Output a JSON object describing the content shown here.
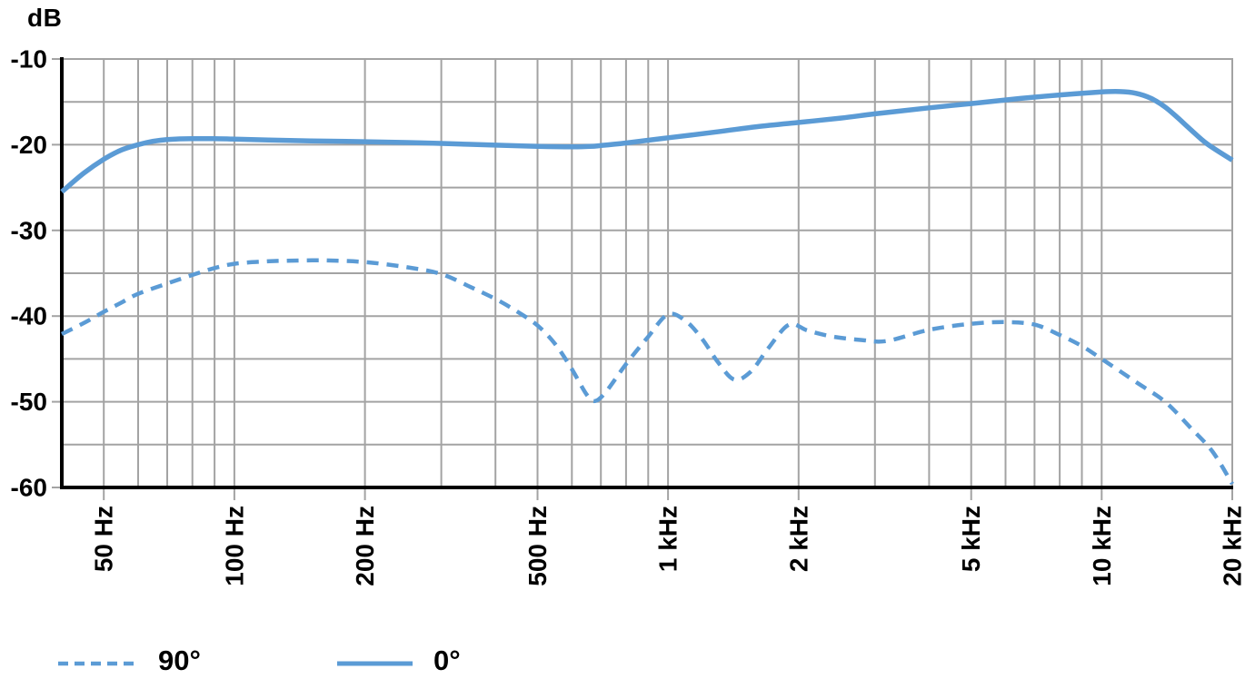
{
  "chart_data": {
    "type": "line",
    "title": "",
    "ylabel": "dB",
    "xlabel": "",
    "x_scale": "log",
    "grid": true,
    "xlim": [
      40,
      20000
    ],
    "ylim": [
      -60,
      -10
    ],
    "y_grid_step": 5,
    "x_ticks": [
      {
        "f": 50,
        "label": "50 Hz"
      },
      {
        "f": 100,
        "label": "100 Hz"
      },
      {
        "f": 200,
        "label": "200 Hz"
      },
      {
        "f": 500,
        "label": "500 Hz"
      },
      {
        "f": 1000,
        "label": "1 kHz"
      },
      {
        "f": 2000,
        "label": "2 kHz"
      },
      {
        "f": 5000,
        "label": "5 kHz"
      },
      {
        "f": 10000,
        "label": "10 kHz"
      },
      {
        "f": 20000,
        "label": "20 kHz"
      }
    ],
    "y_ticks": [
      {
        "v": -10,
        "label": "-10"
      },
      {
        "v": -20,
        "label": "-20"
      },
      {
        "v": -30,
        "label": "-30"
      },
      {
        "v": -40,
        "label": "-40"
      },
      {
        "v": -50,
        "label": "-50"
      },
      {
        "v": -60,
        "label": "-60"
      }
    ],
    "legend_position": "bottom",
    "series": [
      {
        "name": "0°",
        "style": "solid",
        "color": "#5b9bd5",
        "points": [
          [
            40,
            -25.5
          ],
          [
            45,
            -23.3
          ],
          [
            50,
            -21.7
          ],
          [
            55,
            -20.6
          ],
          [
            60,
            -20.0
          ],
          [
            65,
            -19.6
          ],
          [
            70,
            -19.4
          ],
          [
            80,
            -19.3
          ],
          [
            90,
            -19.3
          ],
          [
            100,
            -19.35
          ],
          [
            120,
            -19.45
          ],
          [
            150,
            -19.55
          ],
          [
            200,
            -19.65
          ],
          [
            250,
            -19.75
          ],
          [
            300,
            -19.85
          ],
          [
            400,
            -20.05
          ],
          [
            500,
            -20.2
          ],
          [
            600,
            -20.25
          ],
          [
            660,
            -20.2
          ],
          [
            700,
            -20.1
          ],
          [
            800,
            -19.8
          ],
          [
            1000,
            -19.2
          ],
          [
            1300,
            -18.5
          ],
          [
            1600,
            -17.9
          ],
          [
            2000,
            -17.4
          ],
          [
            2500,
            -16.9
          ],
          [
            3000,
            -16.4
          ],
          [
            4000,
            -15.7
          ],
          [
            5000,
            -15.2
          ],
          [
            6500,
            -14.6
          ],
          [
            8000,
            -14.2
          ],
          [
            10000,
            -13.85
          ],
          [
            11000,
            -13.8
          ],
          [
            12000,
            -14.0
          ],
          [
            13000,
            -14.6
          ],
          [
            14000,
            -15.6
          ],
          [
            15000,
            -16.9
          ],
          [
            16000,
            -18.2
          ],
          [
            17500,
            -19.9
          ],
          [
            20000,
            -21.8
          ]
        ]
      },
      {
        "name": "90°",
        "style": "dashed",
        "color": "#5b9bd5",
        "points": [
          [
            40,
            -42.1
          ],
          [
            45,
            -40.8
          ],
          [
            50,
            -39.5
          ],
          [
            55,
            -38.4
          ],
          [
            60,
            -37.4
          ],
          [
            70,
            -36.2
          ],
          [
            80,
            -35.2
          ],
          [
            90,
            -34.4
          ],
          [
            100,
            -33.9
          ],
          [
            115,
            -33.65
          ],
          [
            130,
            -33.55
          ],
          [
            160,
            -33.5
          ],
          [
            200,
            -33.7
          ],
          [
            250,
            -34.3
          ],
          [
            300,
            -35.1
          ],
          [
            350,
            -36.6
          ],
          [
            400,
            -38.0
          ],
          [
            450,
            -39.5
          ],
          [
            500,
            -41.1
          ],
          [
            550,
            -43.3
          ],
          [
            600,
            -46.2
          ],
          [
            650,
            -49.2
          ],
          [
            680,
            -49.9
          ],
          [
            720,
            -48.8
          ],
          [
            800,
            -45.6
          ],
          [
            900,
            -42.4
          ],
          [
            1000,
            -39.8
          ],
          [
            1100,
            -40.6
          ],
          [
            1200,
            -42.7
          ],
          [
            1300,
            -45.3
          ],
          [
            1420,
            -47.4
          ],
          [
            1550,
            -46.5
          ],
          [
            1700,
            -43.8
          ],
          [
            1900,
            -41.0
          ],
          [
            2100,
            -41.7
          ],
          [
            2400,
            -42.4
          ],
          [
            2800,
            -42.8
          ],
          [
            3200,
            -42.9
          ],
          [
            4000,
            -41.6
          ],
          [
            5000,
            -40.9
          ],
          [
            6000,
            -40.7
          ],
          [
            7000,
            -41.0
          ],
          [
            8000,
            -42.2
          ],
          [
            9000,
            -43.5
          ],
          [
            10000,
            -45.0
          ],
          [
            12000,
            -47.7
          ],
          [
            14000,
            -50.0
          ],
          [
            16000,
            -53.0
          ],
          [
            18000,
            -55.8
          ],
          [
            20000,
            -59.6
          ]
        ]
      }
    ]
  },
  "legend": {
    "items": [
      {
        "label": "90°",
        "style": "dashed"
      },
      {
        "label": "0°",
        "style": "solid"
      }
    ]
  },
  "colors": {
    "curve_blue": "#5b9bd5",
    "grid": "#a3a3a3",
    "axis": "#000000",
    "text": "#000000"
  }
}
